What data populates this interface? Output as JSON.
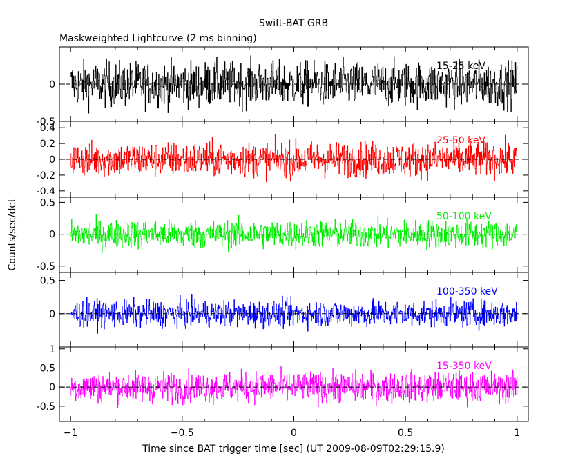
{
  "title": "Swift-BAT GRB",
  "subtitle": "Maskweighted Lightcurve (2 ms binning)",
  "ylabel": "Counts/sec/det",
  "xlabel": "Time since BAT trigger time [sec] (UT 2009-08-09T02:29:15.9)",
  "chart_data": [
    {
      "type": "line",
      "series": [
        {
          "name": "15-25 keV",
          "color": "#000000"
        }
      ],
      "xlim": [
        -1.05,
        1.05
      ],
      "ylim": [
        -0.5,
        0.5
      ],
      "yticks": [
        -0.5,
        0
      ],
      "yticklabels": [
        "-0.5",
        "0"
      ],
      "noise_amplitude": 0.3
    },
    {
      "type": "line",
      "series": [
        {
          "name": "25-50 keV",
          "color": "#ff0000"
        }
      ],
      "xlim": [
        -1.05,
        1.05
      ],
      "ylim": [
        -0.48,
        0.48
      ],
      "yticks": [
        -0.4,
        -0.2,
        0,
        0.2,
        0.4
      ],
      "yticklabels": [
        "-0.4",
        "-0.2",
        "0",
        "0.2",
        "0.4"
      ],
      "noise_amplitude": 0.22
    },
    {
      "type": "line",
      "series": [
        {
          "name": "50-100 keV",
          "color": "#00ee00"
        }
      ],
      "xlim": [
        -1.05,
        1.05
      ],
      "ylim": [
        -0.6,
        0.58
      ],
      "yticks": [
        -0.5,
        0,
        0.5
      ],
      "yticklabels": [
        "-0.5",
        "0",
        "0.5"
      ],
      "noise_amplitude": 0.22
    },
    {
      "type": "line",
      "series": [
        {
          "name": "100-350 keV",
          "color": "#0000ff"
        }
      ],
      "xlim": [
        -1.05,
        1.05
      ],
      "ylim": [
        -0.5,
        0.62
      ],
      "yticks": [
        0,
        0.5
      ],
      "yticklabels": [
        "0",
        "0.5"
      ],
      "noise_amplitude": 0.2
    },
    {
      "type": "line",
      "series": [
        {
          "name": "15-350 keV",
          "color": "#ff00ff"
        }
      ],
      "xlim": [
        -1.05,
        1.05
      ],
      "ylim": [
        -0.9,
        1.05
      ],
      "yticks": [
        -0.5,
        0,
        0.5,
        1
      ],
      "yticklabels": [
        "-0.5",
        "0",
        "0.5",
        "1"
      ],
      "noise_amplitude": 0.4
    }
  ],
  "xaxis": {
    "ticks": [
      -1,
      -0.5,
      0,
      0.5,
      1
    ],
    "ticklabels": [
      "−1",
      "−0.5",
      "0",
      "0.5",
      "1"
    ]
  }
}
